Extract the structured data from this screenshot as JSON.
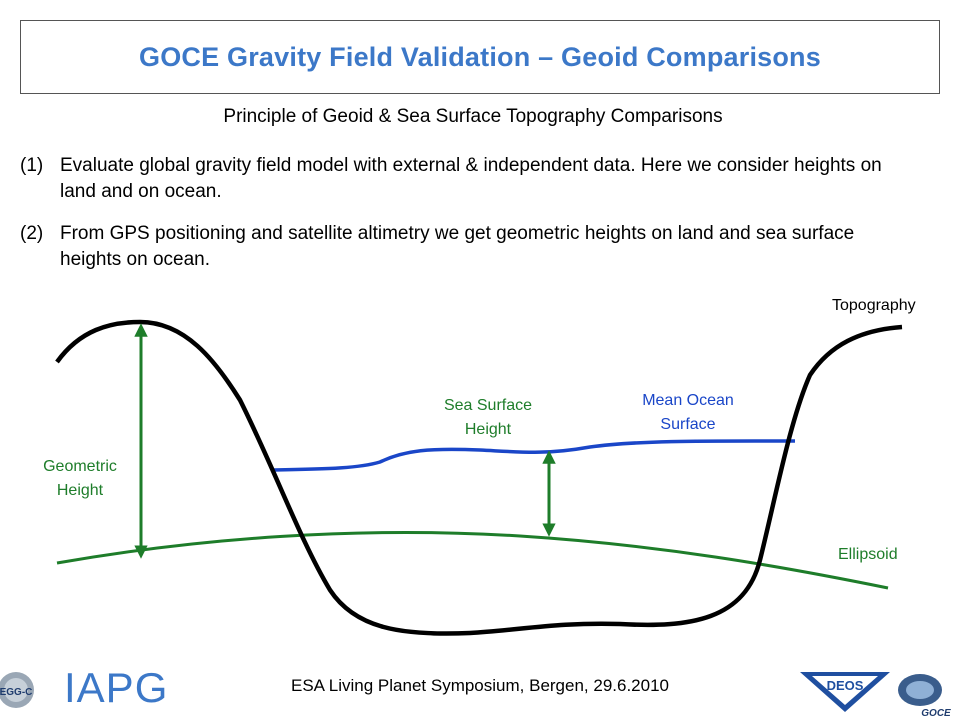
{
  "header": {
    "title": "GOCE Gravity Field Validation – Geoid Comparisons",
    "subtitle": "Principle of Geoid & Sea Surface Topography Comparisons"
  },
  "points": [
    {
      "num": "(1)",
      "text": "Evaluate global gravity field model with external & independent data. Here we consider heights on land and on ocean."
    },
    {
      "num": "(2)",
      "text": "From GPS positioning and satellite altimetry we get geometric heights on land and sea surface heights on ocean."
    }
  ],
  "diagram": {
    "topography": "Topography",
    "ellipsoid": "Ellipsoid",
    "geometric_height_1": "Geometric",
    "geometric_height_2": "Height",
    "sea_surface_height_1": "Sea Surface",
    "sea_surface_height_2": "Height",
    "mean_ocean_surface_1": "Mean Ocean",
    "mean_ocean_surface_2": "Surface",
    "colors": {
      "topography": "#000000",
      "ellipsoid": "#1e7d2a",
      "ocean": "#1a46c8",
      "arrows": "#1e7d2a"
    }
  },
  "footer": {
    "left_logo_text": "IAPG",
    "egg_logo_text": "EGG-C",
    "center_text": "ESA Living Planet Symposium, Bergen, 29.6.2010",
    "deos_logo_text": "DEOS",
    "goce_logo_text": "GOCE"
  }
}
